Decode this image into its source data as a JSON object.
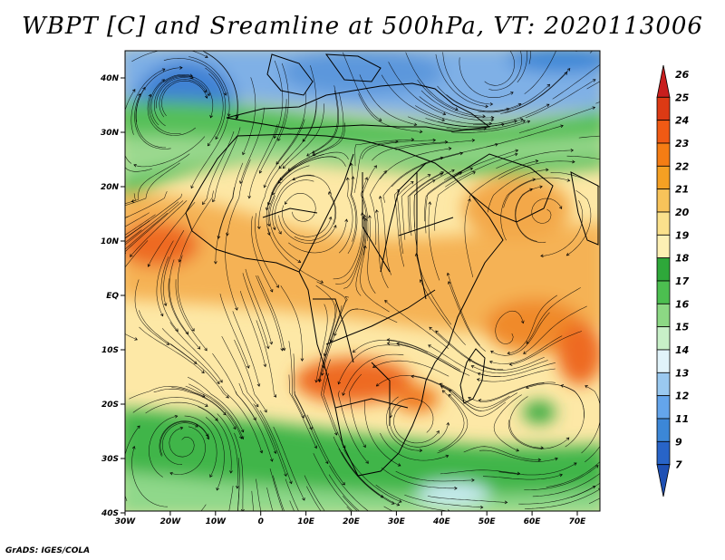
{
  "title": "WBPT [C] and Sreamline at 500hPa, VT: 2020113006",
  "footer": "GrADS: IGES/COLA",
  "map": {
    "lat_labels": [
      "40N",
      "30N",
      "20N",
      "10N",
      "EQ",
      "10S",
      "20S",
      "30S",
      "40S"
    ],
    "lon_labels": [
      "30W",
      "20W",
      "10W",
      "0",
      "10E",
      "20E",
      "30E",
      "40E",
      "50E",
      "60E",
      "70E"
    ],
    "lon_range": [
      -30,
      75
    ],
    "lat_range": [
      -40,
      45
    ]
  },
  "colorbar": {
    "levels": [
      "26",
      "25",
      "24",
      "23",
      "22",
      "21",
      "20",
      "19",
      "18",
      "17",
      "16",
      "15",
      "14",
      "13",
      "12",
      "11",
      "9",
      "7"
    ],
    "colors": [
      "#c81e1e",
      "#dc3a14",
      "#f05a14",
      "#f57d14",
      "#f5a023",
      "#f8c35a",
      "#fbe18c",
      "#fdf0b4",
      "#2ea83a",
      "#4cbf50",
      "#8cd884",
      "#c8f0c8",
      "#e1f3fa",
      "#9ac9f0",
      "#64a5eb",
      "#3c87d7",
      "#2864c8",
      "#1e50b4"
    ]
  }
}
